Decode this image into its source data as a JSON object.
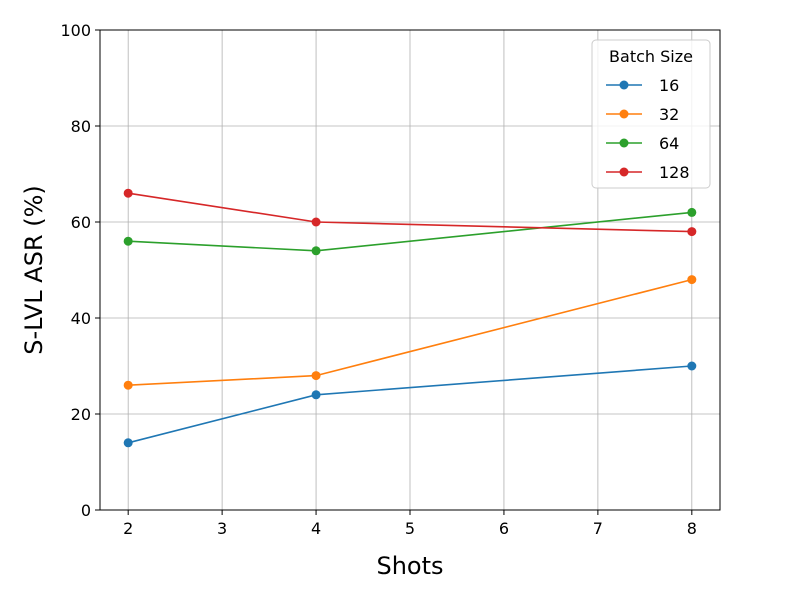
{
  "chart_data": {
    "type": "line",
    "title": "",
    "xlabel": "Shots",
    "ylabel": "S-LVL ASR (%)",
    "x": [
      2,
      4,
      8
    ],
    "xlim": [
      1.7,
      8.3
    ],
    "ylim": [
      0,
      100
    ],
    "xticks": [
      "2",
      "3",
      "4",
      "5",
      "6",
      "7",
      "8"
    ],
    "yticks": [
      "0",
      "20",
      "40",
      "60",
      "80",
      "100"
    ],
    "grid": true,
    "legend": {
      "title": "Batch Size",
      "placement": "top-right"
    },
    "series": [
      {
        "name": "16",
        "color": "#1f77b4",
        "values": [
          14,
          24,
          30
        ]
      },
      {
        "name": "32",
        "color": "#ff7f0e",
        "values": [
          26,
          28,
          48
        ]
      },
      {
        "name": "64",
        "color": "#2ca02c",
        "values": [
          56,
          54,
          62
        ]
      },
      {
        "name": "128",
        "color": "#d62728",
        "values": [
          66,
          60,
          58
        ]
      }
    ]
  }
}
